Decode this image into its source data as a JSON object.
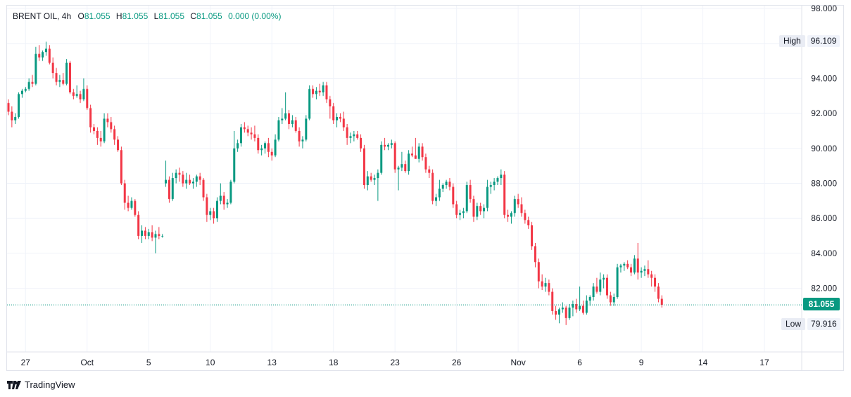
{
  "legend": {
    "symbol": "BRENT OIL, 4h",
    "open_label": "O",
    "open": "81.055",
    "high_label": "H",
    "high": "81.055",
    "low_label": "L",
    "low": "81.055",
    "close_label": "C",
    "close": "81.055",
    "change": "0.000 (0.00%)"
  },
  "markers": {
    "high_label": "High",
    "high_value": "96.109",
    "low_label": "Low",
    "low_value": "79.916",
    "last_price": "81.055"
  },
  "brand": {
    "name": "TradingView"
  },
  "colors": {
    "up": "#089981",
    "down": "#f23645",
    "grid": "#f0f3fa",
    "text": "#131722",
    "accent": "#089981"
  },
  "chart_data": {
    "type": "candlestick",
    "title": "BRENT OIL, 4h",
    "ylim": [
      78.0,
      98.0
    ],
    "yticks": [
      "98.000",
      "96.000",
      "94.000",
      "92.000",
      "90.000",
      "88.000",
      "86.000",
      "84.000",
      "82.000"
    ],
    "xticks": [
      {
        "label": "27",
        "index": 5
      },
      {
        "label": "Oct",
        "index": 23
      },
      {
        "label": "5",
        "index": 41
      },
      {
        "label": "10",
        "index": 59
      },
      {
        "label": "13",
        "index": 77
      },
      {
        "label": "18",
        "index": 95
      },
      {
        "label": "23",
        "index": 113
      },
      {
        "label": "26",
        "index": 131
      },
      {
        "label": "Nov",
        "index": 149
      },
      {
        "label": "6",
        "index": 167
      },
      {
        "label": "9",
        "index": 185
      },
      {
        "label": "14",
        "index": 203
      },
      {
        "label": "17",
        "index": 221
      }
    ],
    "last_price": 81.055,
    "candles": [
      [
        92.6,
        92.8,
        91.9,
        92.1
      ],
      [
        92.1,
        92.4,
        91.2,
        91.6
      ],
      [
        91.6,
        92.0,
        91.4,
        91.8
      ],
      [
        91.8,
        93.2,
        91.7,
        93.1
      ],
      [
        93.1,
        93.4,
        92.9,
        93.3
      ],
      [
        93.3,
        93.5,
        93.2,
        93.4
      ],
      [
        93.4,
        94.0,
        93.3,
        93.8
      ],
      [
        93.8,
        94.2,
        93.5,
        93.7
      ],
      [
        93.7,
        95.8,
        93.6,
        95.4
      ],
      [
        95.4,
        95.9,
        95.0,
        95.2
      ],
      [
        95.2,
        95.6,
        95.0,
        95.5
      ],
      [
        95.5,
        96.1,
        95.3,
        95.7
      ],
      [
        95.7,
        95.9,
        94.8,
        94.9
      ],
      [
        94.9,
        95.2,
        94.0,
        94.3
      ],
      [
        94.3,
        94.6,
        93.6,
        93.8
      ],
      [
        93.8,
        94.2,
        93.5,
        93.9
      ],
      [
        93.9,
        94.3,
        93.6,
        93.7
      ],
      [
        93.7,
        95.1,
        93.6,
        94.9
      ],
      [
        94.9,
        95.0,
        93.1,
        93.2
      ],
      [
        93.2,
        93.4,
        92.8,
        93.0
      ],
      [
        93.0,
        93.6,
        92.9,
        93.1
      ],
      [
        93.1,
        93.3,
        92.6,
        92.8
      ],
      [
        92.8,
        94.0,
        92.7,
        93.4
      ],
      [
        93.4,
        93.6,
        92.2,
        92.3
      ],
      [
        92.3,
        92.5,
        90.9,
        91.2
      ],
      [
        91.2,
        91.4,
        90.8,
        91.0
      ],
      [
        91.0,
        91.2,
        90.2,
        90.6
      ],
      [
        90.6,
        91.0,
        90.1,
        90.4
      ],
      [
        90.4,
        92.0,
        90.3,
        91.7
      ],
      [
        91.7,
        92.0,
        91.2,
        91.5
      ],
      [
        91.5,
        91.8,
        90.9,
        91.1
      ],
      [
        91.1,
        91.3,
        90.2,
        90.5
      ],
      [
        90.5,
        90.7,
        89.8,
        89.9
      ],
      [
        89.9,
        90.1,
        87.9,
        88.0
      ],
      [
        88.0,
        88.2,
        86.5,
        86.9
      ],
      [
        86.9,
        87.3,
        86.4,
        86.6
      ],
      [
        86.6,
        87.2,
        86.5,
        87.0
      ],
      [
        87.0,
        87.1,
        86.1,
        86.2
      ],
      [
        86.2,
        86.4,
        84.8,
        85.0
      ],
      [
        85.0,
        85.6,
        84.6,
        85.3
      ],
      [
        85.3,
        85.5,
        84.8,
        85.0
      ],
      [
        85.0,
        85.4,
        84.8,
        85.2
      ],
      [
        85.2,
        85.6,
        84.7,
        84.9
      ],
      [
        84.9,
        85.3,
        84.0,
        85.1
      ],
      [
        85.1,
        85.5,
        84.8,
        85.0
      ],
      [
        85.0,
        85.1,
        84.9,
        85.0
      ],
      [
        88.0,
        89.3,
        87.8,
        88.2
      ],
      [
        88.2,
        88.4,
        86.9,
        87.1
      ],
      [
        87.1,
        88.6,
        87.0,
        88.3
      ],
      [
        88.3,
        88.8,
        88.0,
        88.6
      ],
      [
        88.6,
        88.9,
        88.1,
        88.5
      ],
      [
        88.5,
        88.7,
        87.8,
        88.0
      ],
      [
        88.0,
        88.6,
        87.7,
        88.2
      ],
      [
        88.2,
        88.5,
        87.9,
        88.0
      ],
      [
        88.0,
        88.3,
        87.7,
        88.1
      ],
      [
        88.1,
        88.5,
        87.8,
        88.4
      ],
      [
        88.4,
        88.6,
        87.9,
        88.2
      ],
      [
        88.2,
        88.3,
        87.0,
        87.2
      ],
      [
        87.2,
        87.4,
        85.8,
        86.2
      ],
      [
        86.2,
        86.6,
        85.9,
        86.4
      ],
      [
        86.4,
        86.6,
        85.7,
        86.0
      ],
      [
        86.0,
        87.2,
        85.8,
        87.0
      ],
      [
        87.0,
        88.0,
        86.8,
        87.3
      ],
      [
        87.3,
        87.5,
        86.5,
        86.8
      ],
      [
        86.8,
        87.1,
        86.6,
        86.9
      ],
      [
        86.9,
        88.2,
        86.8,
        88.1
      ],
      [
        88.1,
        91.0,
        88.0,
        90.0
      ],
      [
        90.0,
        90.5,
        89.8,
        90.3
      ],
      [
        90.3,
        91.4,
        90.1,
        91.2
      ],
      [
        91.2,
        91.5,
        90.9,
        91.1
      ],
      [
        91.1,
        91.3,
        90.7,
        90.9
      ],
      [
        90.9,
        91.2,
        90.5,
        90.8
      ],
      [
        90.8,
        91.3,
        90.4,
        90.6
      ],
      [
        90.6,
        90.8,
        89.7,
        89.9
      ],
      [
        89.9,
        90.2,
        89.6,
        90.0
      ],
      [
        90.0,
        90.4,
        89.7,
        90.3
      ],
      [
        90.3,
        90.6,
        89.5,
        89.8
      ],
      [
        89.8,
        90.0,
        89.3,
        89.6
      ],
      [
        89.6,
        90.8,
        89.5,
        90.5
      ],
      [
        90.5,
        91.8,
        90.4,
        91.6
      ],
      [
        91.6,
        92.3,
        91.4,
        91.7
      ],
      [
        91.7,
        93.2,
        91.6,
        92.0
      ],
      [
        92.0,
        92.2,
        91.1,
        91.4
      ],
      [
        91.4,
        91.9,
        91.2,
        91.6
      ],
      [
        91.6,
        91.8,
        90.9,
        91.0
      ],
      [
        91.0,
        91.2,
        90.1,
        90.4
      ],
      [
        90.4,
        90.7,
        90.0,
        90.5
      ],
      [
        90.5,
        91.9,
        90.4,
        91.7
      ],
      [
        91.7,
        93.6,
        91.6,
        93.4
      ],
      [
        93.4,
        93.6,
        92.9,
        93.1
      ],
      [
        93.1,
        93.5,
        92.8,
        93.3
      ],
      [
        93.3,
        93.7,
        93.0,
        93.2
      ],
      [
        93.2,
        93.8,
        93.0,
        93.6
      ],
      [
        93.6,
        93.8,
        92.6,
        92.8
      ],
      [
        92.8,
        93.0,
        91.7,
        92.4
      ],
      [
        92.4,
        92.6,
        91.4,
        91.6
      ],
      [
        91.6,
        92.0,
        91.2,
        91.8
      ],
      [
        91.8,
        92.0,
        91.5,
        91.7
      ],
      [
        91.7,
        92.1,
        91.0,
        91.2
      ],
      [
        91.2,
        91.4,
        90.2,
        90.6
      ],
      [
        90.6,
        90.9,
        90.3,
        90.7
      ],
      [
        90.7,
        91.0,
        90.4,
        90.8
      ],
      [
        90.8,
        91.0,
        90.5,
        90.6
      ],
      [
        90.6,
        90.8,
        89.8,
        90.0
      ],
      [
        90.0,
        90.2,
        87.7,
        87.9
      ],
      [
        87.9,
        88.7,
        87.6,
        88.4
      ],
      [
        88.4,
        88.6,
        88.1,
        88.2
      ],
      [
        88.2,
        88.5,
        87.9,
        88.3
      ],
      [
        88.3,
        88.8,
        87.0,
        88.6
      ],
      [
        88.6,
        90.4,
        88.5,
        90.2
      ],
      [
        90.2,
        90.6,
        89.9,
        90.1
      ],
      [
        90.1,
        90.3,
        89.9,
        90.2
      ],
      [
        90.2,
        90.5,
        90.0,
        90.3
      ],
      [
        90.3,
        90.4,
        88.6,
        88.8
      ],
      [
        88.8,
        89.0,
        87.6,
        88.9
      ],
      [
        88.9,
        89.8,
        88.7,
        89.1
      ],
      [
        89.1,
        89.3,
        88.6,
        88.7
      ],
      [
        88.7,
        89.9,
        88.5,
        89.7
      ],
      [
        89.7,
        90.1,
        89.5,
        89.6
      ],
      [
        89.6,
        90.6,
        89.4,
        89.4
      ],
      [
        89.4,
        90.3,
        89.2,
        90.1
      ],
      [
        90.1,
        90.3,
        89.3,
        89.5
      ],
      [
        89.5,
        89.7,
        88.6,
        88.8
      ],
      [
        88.8,
        89.0,
        88.3,
        88.6
      ],
      [
        88.6,
        88.8,
        86.8,
        87.0
      ],
      [
        87.0,
        87.4,
        86.7,
        87.2
      ],
      [
        87.2,
        88.2,
        87.0,
        87.7
      ],
      [
        87.7,
        88.0,
        87.5,
        87.9
      ],
      [
        87.9,
        88.2,
        87.7,
        88.1
      ],
      [
        88.1,
        88.3,
        87.6,
        87.8
      ],
      [
        87.8,
        88.0,
        86.6,
        86.8
      ],
      [
        86.8,
        87.0,
        86.0,
        86.2
      ],
      [
        86.2,
        86.5,
        85.9,
        86.3
      ],
      [
        86.3,
        86.6,
        86.0,
        86.4
      ],
      [
        86.4,
        88.1,
        86.3,
        87.9
      ],
      [
        87.9,
        88.2,
        86.9,
        87.1
      ],
      [
        87.1,
        87.3,
        85.8,
        86.1
      ],
      [
        86.1,
        86.9,
        85.9,
        86.7
      ],
      [
        86.7,
        86.9,
        86.2,
        86.4
      ],
      [
        86.4,
        86.8,
        86.0,
        86.6
      ],
      [
        86.6,
        88.2,
        86.4,
        87.8
      ],
      [
        87.8,
        88.1,
        87.4,
        87.9
      ],
      [
        87.9,
        88.3,
        87.6,
        88.1
      ],
      [
        88.1,
        88.4,
        87.9,
        88.3
      ],
      [
        88.3,
        88.8,
        87.9,
        88.5
      ],
      [
        88.5,
        88.7,
        86.0,
        86.2
      ],
      [
        86.2,
        86.5,
        85.8,
        86.1
      ],
      [
        86.1,
        86.4,
        85.7,
        86.3
      ],
      [
        86.3,
        87.3,
        86.1,
        87.1
      ],
      [
        87.1,
        87.4,
        86.6,
        86.8
      ],
      [
        86.8,
        87.2,
        86.1,
        86.3
      ],
      [
        86.3,
        86.5,
        85.7,
        85.9
      ],
      [
        85.9,
        86.1,
        85.4,
        85.6
      ],
      [
        85.6,
        85.8,
        84.2,
        84.4
      ],
      [
        84.4,
        84.6,
        83.2,
        83.5
      ],
      [
        83.5,
        83.7,
        82.0,
        82.4
      ],
      [
        82.4,
        82.8,
        81.9,
        82.1
      ],
      [
        82.1,
        82.6,
        81.8,
        82.3
      ],
      [
        82.3,
        82.5,
        81.6,
        81.8
      ],
      [
        81.8,
        82.0,
        80.5,
        80.7
      ],
      [
        80.7,
        81.0,
        80.2,
        80.5
      ],
      [
        80.5,
        80.9,
        80.0,
        80.8
      ],
      [
        80.8,
        81.2,
        80.6,
        80.9
      ],
      [
        80.9,
        81.0,
        79.9,
        80.3
      ],
      [
        80.3,
        81.1,
        80.2,
        80.9
      ],
      [
        80.9,
        81.3,
        80.4,
        81.1
      ],
      [
        81.1,
        81.4,
        80.6,
        80.8
      ],
      [
        80.8,
        82.1,
        80.7,
        81.0
      ],
      [
        81.0,
        81.3,
        80.5,
        80.6
      ],
      [
        80.6,
        81.6,
        80.5,
        81.3
      ],
      [
        81.3,
        81.6,
        81.0,
        81.5
      ],
      [
        81.5,
        82.3,
        81.3,
        82.1
      ],
      [
        82.1,
        82.6,
        81.7,
        81.8
      ],
      [
        81.8,
        82.9,
        81.6,
        82.5
      ],
      [
        82.5,
        82.8,
        82.0,
        82.6
      ],
      [
        82.6,
        82.8,
        81.4,
        81.6
      ],
      [
        81.6,
        81.8,
        81.0,
        81.2
      ],
      [
        81.2,
        81.7,
        81.0,
        81.5
      ],
      [
        81.5,
        83.4,
        81.4,
        83.2
      ],
      [
        83.2,
        83.4,
        82.9,
        83.3
      ],
      [
        83.3,
        83.5,
        83.0,
        83.4
      ],
      [
        83.4,
        83.6,
        83.1,
        83.2
      ],
      [
        83.2,
        83.4,
        82.7,
        82.9
      ],
      [
        82.9,
        83.9,
        82.8,
        83.7
      ],
      [
        83.7,
        84.6,
        82.5,
        82.9
      ],
      [
        82.9,
        83.2,
        82.6,
        83.0
      ],
      [
        83.0,
        83.3,
        82.7,
        83.1
      ],
      [
        83.1,
        83.6,
        82.6,
        82.8
      ],
      [
        82.8,
        83.0,
        82.1,
        82.6
      ],
      [
        82.6,
        82.8,
        81.8,
        82.1
      ],
      [
        82.1,
        82.3,
        81.2,
        81.4
      ],
      [
        81.4,
        81.6,
        80.9,
        81.055
      ]
    ]
  }
}
